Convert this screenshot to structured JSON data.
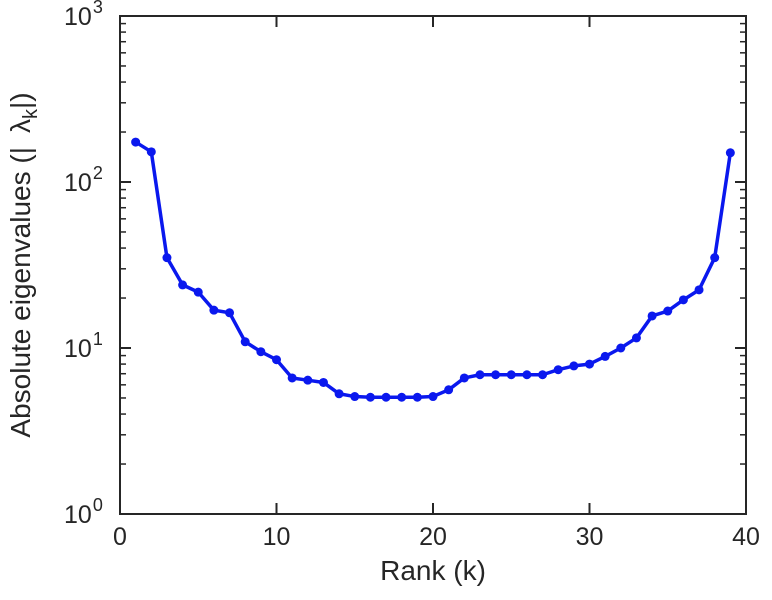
{
  "chart_data": {
    "type": "line",
    "title": "",
    "xlabel": "Rank (k)",
    "ylabel_text": "Absolute eigenvalues (|λ_k|)",
    "ylabel_parts": {
      "prefix": "Absolute eigenvalues (|",
      "symbol": "λ",
      "subscript": "k",
      "suffix": "|)"
    },
    "x_ticks": [
      0,
      10,
      20,
      30,
      40
    ],
    "y_tick_base": "10",
    "y_tick_exponents": [
      0,
      1,
      2,
      3
    ],
    "xlim": [
      0,
      40
    ],
    "ylim": [
      1,
      1000
    ],
    "y_scale": "log",
    "grid": false,
    "legend": null,
    "line_color": "#0a18ee",
    "axis_color": "#262626",
    "marker": "circle",
    "x": [
      1,
      2,
      3,
      4,
      5,
      6,
      7,
      8,
      9,
      10,
      11,
      12,
      13,
      14,
      15,
      16,
      17,
      18,
      19,
      20,
      21,
      22,
      23,
      24,
      25,
      26,
      27,
      28,
      29,
      30,
      31,
      32,
      33,
      34,
      35,
      36,
      37,
      38,
      39
    ],
    "y": [
      174,
      152,
      35,
      24,
      21.7,
      16.9,
      16.3,
      10.9,
      9.5,
      8.5,
      6.6,
      6.4,
      6.2,
      5.3,
      5.1,
      5.05,
      5.05,
      5.05,
      5.05,
      5.1,
      5.6,
      6.6,
      6.9,
      6.9,
      6.9,
      6.9,
      6.9,
      7.4,
      7.8,
      8.0,
      8.9,
      10,
      11.5,
      15.6,
      16.7,
      19.5,
      22.4,
      35,
      150
    ]
  }
}
